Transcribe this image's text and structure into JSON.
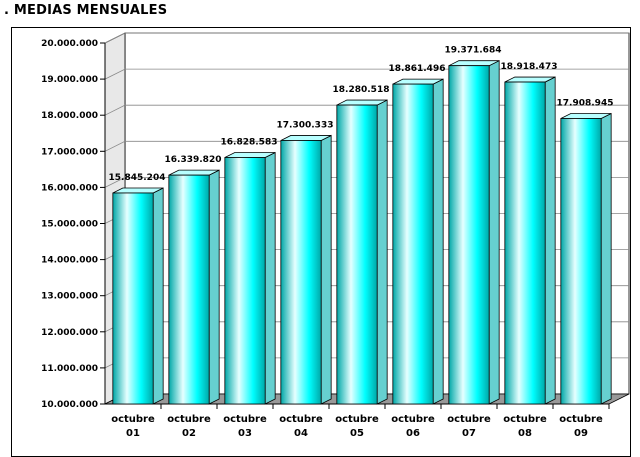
{
  "page_title": ". MEDIAS MENSUALES",
  "colors": {
    "bar_face": "#00ffff",
    "bar_highlight": "#e6ffff",
    "bar_shadow": "#00a8a8",
    "bar_top": "#b8ffff",
    "bar_side": "#66d0d0",
    "wall": "#ffffff",
    "floor": "#999999",
    "grid": "#888888"
  },
  "chart_data": {
    "type": "bar",
    "style": "3d",
    "title": "",
    "xlabel": "",
    "ylabel": "",
    "ylim": [
      10000000,
      20000000
    ],
    "yticks": [
      10000000,
      11000000,
      12000000,
      13000000,
      14000000,
      15000000,
      16000000,
      17000000,
      18000000,
      19000000,
      20000000
    ],
    "ytick_labels": [
      "10.000.000",
      "11.000.000",
      "12.000.000",
      "13.000.000",
      "14.000.000",
      "15.000.000",
      "16.000.000",
      "17.000.000",
      "18.000.000",
      "19.000.000",
      "20.000.000"
    ],
    "categories": [
      [
        "octubre",
        "01"
      ],
      [
        "octubre",
        "02"
      ],
      [
        "octubre",
        "03"
      ],
      [
        "octubre",
        "04"
      ],
      [
        "octubre",
        "05"
      ],
      [
        "octubre",
        "06"
      ],
      [
        "octubre",
        "07"
      ],
      [
        "octubre",
        "08"
      ],
      [
        "octubre",
        "09"
      ]
    ],
    "values": [
      15845204,
      16339820,
      16828583,
      17300333,
      18280518,
      18861496,
      19371684,
      18918473,
      17908945
    ],
    "data_labels": [
      "15.845.204",
      "16.339.820",
      "16.828.583",
      "17.300.333",
      "18.280.518",
      "18.861.496",
      "19.371.684",
      "18.918.473",
      "17.908.945"
    ],
    "grid": true,
    "legend": "none"
  }
}
